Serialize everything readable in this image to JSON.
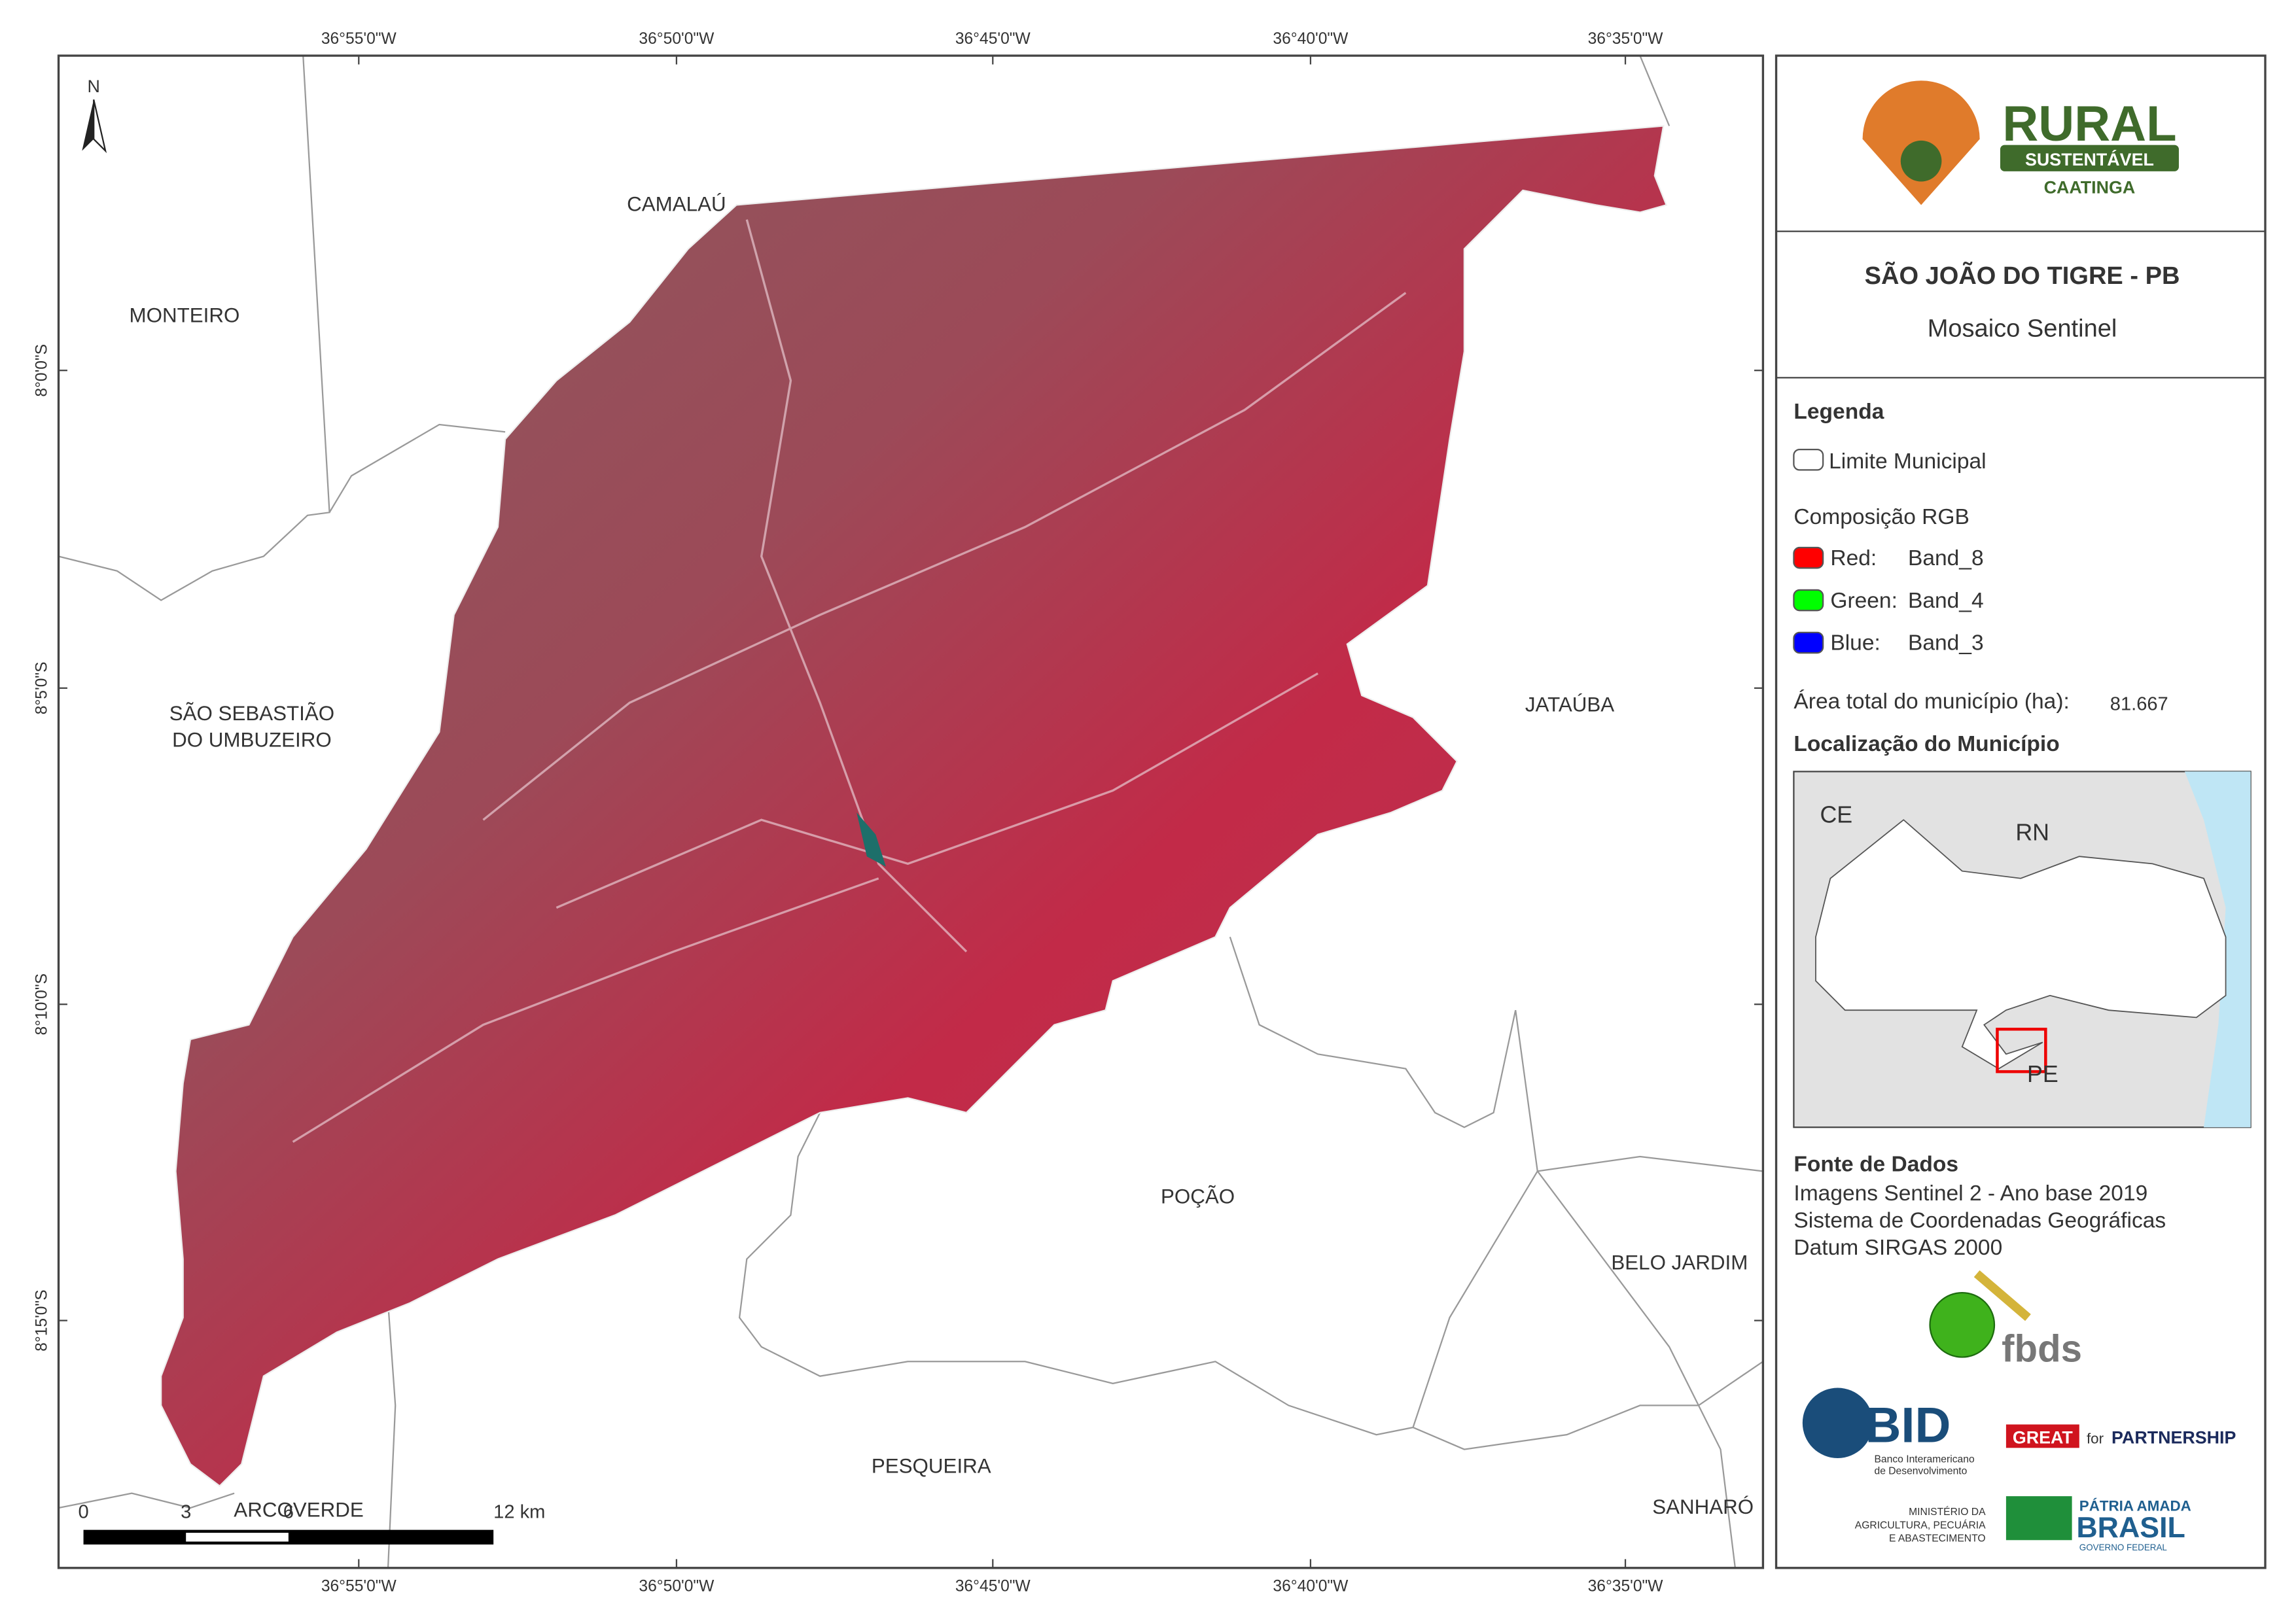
{
  "map": {
    "north": "N",
    "lon_labels": [
      "36°55'0\"W",
      "36°50'0\"W",
      "36°45'0\"W",
      "36°40'0\"W",
      "36°35'0\"W"
    ],
    "lat_labels": [
      "8°0'0\"S",
      "8°5'0\"S",
      "8°10'0\"S",
      "8°15'0\"S"
    ],
    "places": [
      "CAMALAÚ",
      "MONTEIRO",
      "SÃO SEBASTIÃO",
      "DO UMBUZEIRO",
      "JATAÚBA",
      "POÇÃO",
      "BELO JARDIM",
      "PESQUEIRA",
      "SANHARÓ",
      "ARCOVERDE"
    ],
    "scale_bar": [
      "0",
      "3",
      "6",
      "12 km"
    ]
  },
  "panel": {
    "logo": {
      "rural": "RURAL",
      "sustentavel": "SUSTENTÁVEL",
      "caatinga": "CAATINGA"
    },
    "title": "SÃO JOÃO DO TIGRE - PB",
    "subtitle": "Mosaico Sentinel",
    "legend": {
      "heading": "Legenda",
      "boundary": "Limite Municipal",
      "rgb": "Composição RGB",
      "bands": [
        {
          "channel": "Red:",
          "band": "Band_8",
          "color": "#ff0000"
        },
        {
          "channel": "Green:",
          "band": "Band_4",
          "color": "#00ff00"
        },
        {
          "channel": "Blue:",
          "band": "Band_3",
          "color": "#0000ff"
        }
      ]
    },
    "area_label": "Área total do município (ha):",
    "area_value": "81.667",
    "location": {
      "heading": "Localização do Município",
      "states": [
        "CE",
        "RN",
        "PE"
      ]
    },
    "sources": {
      "heading": "Fonte de Dados",
      "lines": [
        "Imagens Sentinel 2 - Ano base 2019",
        "Sistema de Coordenadas Geográficas",
        "Datum SIRGAS 2000"
      ]
    },
    "partners": {
      "fbds": "fbds",
      "bid": "BID",
      "bid_name": [
        "Banco Interamericano",
        "de Desenvolvimento"
      ],
      "great": "GREAT",
      "for": "for",
      "partnership": "PARTNERSHIP",
      "ministry": [
        "MINISTÉRIO DA",
        "AGRICULTURA, PECUÁRIA",
        "E ABASTECIMENTO"
      ],
      "patria": "PÁTRIA AMADA",
      "brasil": "BRASIL",
      "gov": "GOVERNO FEDERAL"
    }
  }
}
